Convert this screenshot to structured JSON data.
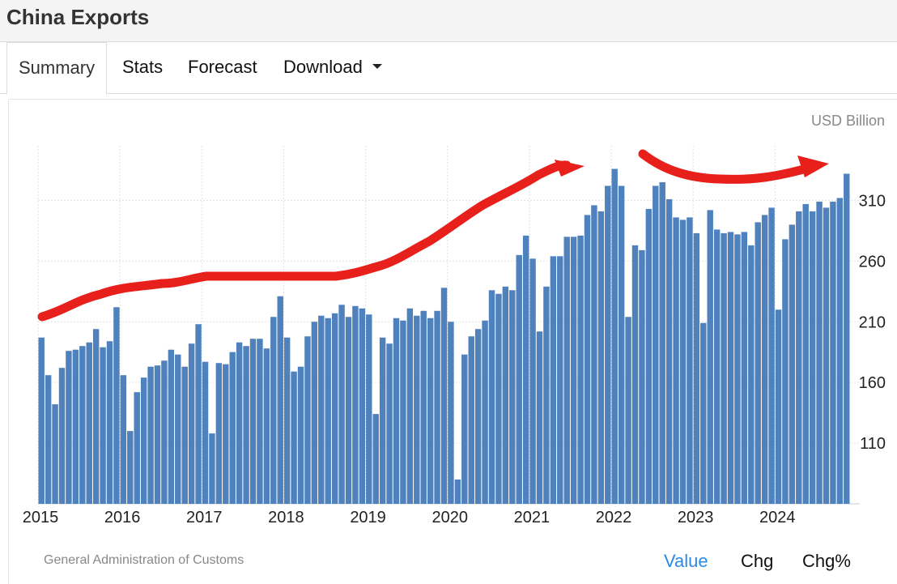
{
  "header": {
    "title": "China Exports"
  },
  "tabs": [
    {
      "label": "Summary"
    },
    {
      "label": "Stats"
    },
    {
      "label": "Forecast"
    },
    {
      "label": "Download"
    }
  ],
  "chart_meta": {
    "unit_label": "USD Billion",
    "source": "General Administration of Customs",
    "modes": [
      "Value",
      "Chg",
      "Chg%"
    ],
    "active_mode": "Value",
    "bar_color": "#4f81bd",
    "annotation_color": "#e8201c"
  },
  "chart_data": {
    "type": "bar",
    "ylim": [
      60,
      355
    ],
    "yticks": [
      110,
      160,
      210,
      260,
      310
    ],
    "xticks": [
      "2015",
      "2016",
      "2017",
      "2018",
      "2019",
      "2020",
      "2021",
      "2022",
      "2023",
      "2024"
    ],
    "start_month": "2015-01",
    "grid": true,
    "values": [
      197,
      166,
      142,
      172,
      186,
      187,
      190,
      193,
      204,
      189,
      194,
      222,
      166,
      120,
      152,
      164,
      173,
      174,
      178,
      187,
      183,
      173,
      192,
      208,
      177,
      118,
      176,
      175,
      185,
      193,
      190,
      196,
      196,
      188,
      214,
      231,
      197,
      169,
      173,
      198,
      210,
      215,
      213,
      217,
      224,
      214,
      223,
      221,
      216,
      134,
      197,
      192,
      213,
      211,
      221,
      215,
      219,
      213,
      219,
      238,
      210,
      80,
      183,
      198,
      204,
      211,
      236,
      233,
      239,
      236,
      265,
      281,
      262,
      202,
      239,
      264,
      264,
      280,
      280,
      281,
      298,
      306,
      301,
      322,
      336,
      322,
      214,
      273,
      269,
      303,
      322,
      325,
      311,
      296,
      294,
      296,
      283,
      209,
      302,
      286,
      283,
      284,
      282,
      284,
      273,
      292,
      298,
      304,
      220,
      278,
      290,
      301,
      307,
      301,
      309,
      304,
      309,
      312,
      332
    ]
  }
}
